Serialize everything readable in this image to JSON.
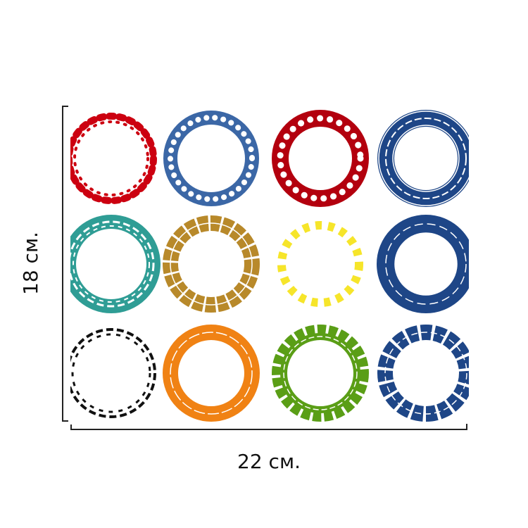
{
  "dimensions": {
    "height": "18 см.",
    "width": "22 см."
  }
}
